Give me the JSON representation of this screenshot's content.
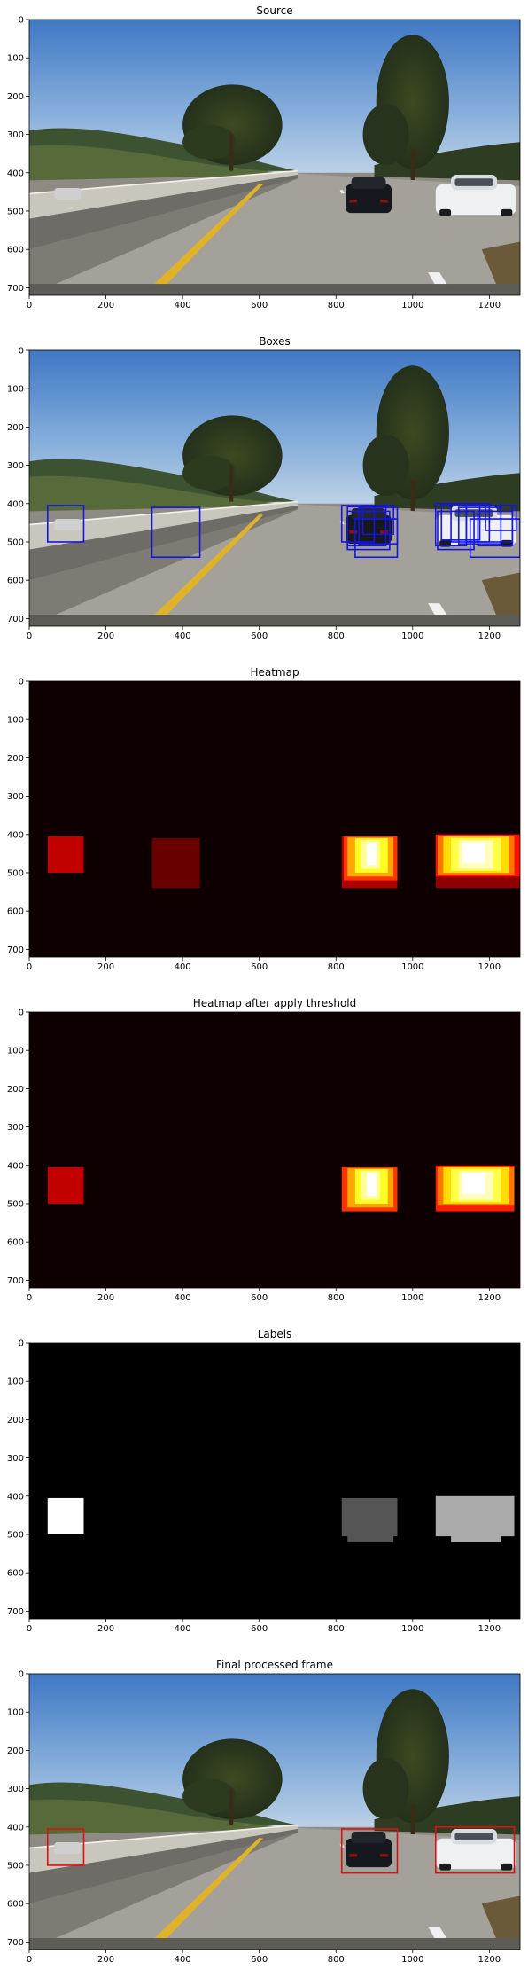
{
  "chart_data": [
    {
      "type": "image",
      "title": "Source",
      "render": "scene",
      "xlim": [
        0,
        1280
      ],
      "ylim": [
        720,
        0
      ],
      "xticks": [
        0,
        200,
        400,
        600,
        800,
        1000,
        1200
      ],
      "yticks": [
        0,
        100,
        200,
        300,
        400,
        500,
        600,
        700
      ],
      "boxes": []
    },
    {
      "type": "image",
      "title": "Boxes",
      "render": "scene",
      "xlim": [
        0,
        1280
      ],
      "ylim": [
        720,
        0
      ],
      "xticks": [
        0,
        200,
        400,
        600,
        800,
        1000,
        1200
      ],
      "yticks": [
        0,
        100,
        200,
        300,
        400,
        500,
        600,
        700
      ],
      "box_color": "#1515e0",
      "boxes": [
        [
          48,
          405,
          142,
          500
        ],
        [
          320,
          410,
          445,
          540
        ],
        [
          815,
          405,
          900,
          500
        ],
        [
          830,
          408,
          930,
          510
        ],
        [
          860,
          410,
          960,
          505
        ],
        [
          830,
          420,
          940,
          520
        ],
        [
          850,
          440,
          960,
          540
        ],
        [
          870,
          405,
          950,
          480
        ],
        [
          1060,
          400,
          1140,
          510
        ],
        [
          1075,
          405,
          1175,
          495
        ],
        [
          1100,
          400,
          1200,
          500
        ],
        [
          1120,
          410,
          1230,
          505
        ],
        [
          1140,
          405,
          1260,
          500
        ],
        [
          1170,
          420,
          1260,
          510
        ],
        [
          1150,
          440,
          1280,
          540
        ],
        [
          1065,
          420,
          1160,
          520
        ],
        [
          1190,
          405,
          1270,
          470
        ]
      ]
    },
    {
      "type": "heatmap",
      "title": "Heatmap",
      "render": "heat",
      "xlim": [
        0,
        1280
      ],
      "ylim": [
        720,
        0
      ],
      "xticks": [
        0,
        200,
        400,
        600,
        800,
        1000,
        1200
      ],
      "yticks": [
        0,
        100,
        200,
        300,
        400,
        500,
        600,
        700
      ],
      "background": "#0e0000",
      "cells": [
        [
          48,
          405,
          142,
          500,
          0.28
        ],
        [
          320,
          410,
          445,
          540,
          0.14
        ],
        [
          815,
          405,
          960,
          540,
          0.25
        ],
        [
          820,
          405,
          960,
          520,
          0.45
        ],
        [
          830,
          408,
          950,
          510,
          0.62
        ],
        [
          850,
          410,
          935,
          500,
          0.78
        ],
        [
          865,
          415,
          915,
          490,
          0.9
        ],
        [
          880,
          420,
          905,
          480,
          1.0
        ],
        [
          1060,
          400,
          1280,
          540,
          0.2
        ],
        [
          1060,
          400,
          1280,
          510,
          0.4
        ],
        [
          1065,
          405,
          1265,
          505,
          0.55
        ],
        [
          1080,
          405,
          1250,
          500,
          0.7
        ],
        [
          1100,
          410,
          1230,
          495,
          0.82
        ],
        [
          1120,
          415,
          1210,
          490,
          0.93
        ],
        [
          1130,
          420,
          1190,
          475,
          1.0
        ]
      ]
    },
    {
      "type": "heatmap",
      "title": "Heatmap after apply threshold",
      "render": "heat",
      "xlim": [
        0,
        1280
      ],
      "ylim": [
        720,
        0
      ],
      "xticks": [
        0,
        200,
        400,
        600,
        800,
        1000,
        1200
      ],
      "yticks": [
        0,
        100,
        200,
        300,
        400,
        500,
        600,
        700
      ],
      "background": "#0e0000",
      "cells": [
        [
          48,
          405,
          142,
          500,
          0.28
        ],
        [
          815,
          405,
          960,
          520,
          0.45
        ],
        [
          830,
          408,
          950,
          510,
          0.62
        ],
        [
          850,
          410,
          935,
          500,
          0.78
        ],
        [
          865,
          415,
          915,
          490,
          0.9
        ],
        [
          880,
          420,
          905,
          480,
          1.0
        ],
        [
          1060,
          400,
          1265,
          520,
          0.42
        ],
        [
          1065,
          405,
          1265,
          505,
          0.55
        ],
        [
          1080,
          405,
          1250,
          500,
          0.7
        ],
        [
          1100,
          410,
          1230,
          495,
          0.82
        ],
        [
          1120,
          415,
          1210,
          490,
          0.93
        ],
        [
          1130,
          420,
          1190,
          475,
          1.0
        ]
      ]
    },
    {
      "type": "heatmap",
      "title": "Labels",
      "render": "labels",
      "xlim": [
        0,
        1280
      ],
      "ylim": [
        720,
        0
      ],
      "xticks": [
        0,
        200,
        400,
        600,
        800,
        1000,
        1200
      ],
      "yticks": [
        0,
        100,
        200,
        300,
        400,
        500,
        600,
        700
      ],
      "background": "#000000",
      "regions": [
        {
          "label": 1,
          "color": "#ffffff",
          "rects": [
            [
              48,
              405,
              142,
              500
            ]
          ]
        },
        {
          "label": 2,
          "color": "#555555",
          "rects": [
            [
              815,
              405,
              960,
              505
            ],
            [
              830,
              500,
              950,
              520
            ]
          ]
        },
        {
          "label": 3,
          "color": "#aaaaaa",
          "rects": [
            [
              1060,
              400,
              1265,
              505
            ],
            [
              1100,
              495,
              1230,
              520
            ]
          ]
        }
      ]
    },
    {
      "type": "image",
      "title": "Final processed frame",
      "render": "scene",
      "xlim": [
        0,
        1280
      ],
      "ylim": [
        720,
        0
      ],
      "xticks": [
        0,
        200,
        400,
        600,
        800,
        1000,
        1200
      ],
      "yticks": [
        0,
        100,
        200,
        300,
        400,
        500,
        600,
        700
      ],
      "box_color": "#e01010",
      "boxes": [
        [
          48,
          405,
          142,
          500
        ],
        [
          815,
          405,
          960,
          520
        ],
        [
          1060,
          400,
          1265,
          520
        ]
      ]
    }
  ]
}
